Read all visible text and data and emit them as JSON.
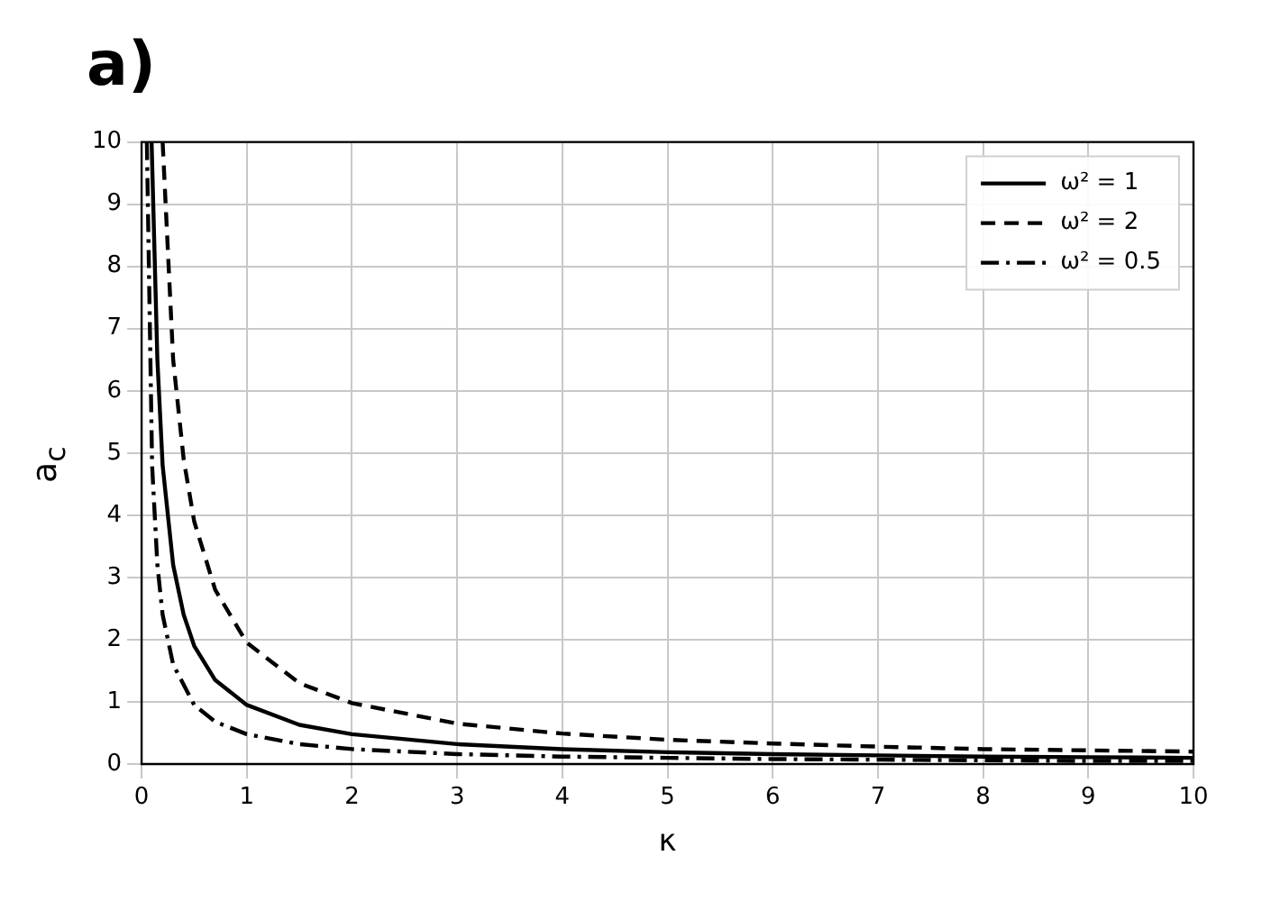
{
  "chart_data": {
    "type": "line",
    "title": "a)",
    "xlabel": "κ",
    "ylabel": "a$_{c}$",
    "xlim": [
      0,
      10
    ],
    "ylim": [
      0,
      10
    ],
    "xticks": [
      0,
      1,
      2,
      3,
      4,
      5,
      6,
      7,
      8,
      9,
      10
    ],
    "yticks": [
      0,
      1,
      2,
      3,
      4,
      5,
      6,
      7,
      8,
      9,
      10
    ],
    "grid": true,
    "legend": "top right",
    "marker": "none",
    "series": [
      {
        "name": "ω² = 1",
        "color": "#000000",
        "line_style": "solid",
        "x": [
          0.095,
          0.15,
          0.2,
          0.3,
          0.4,
          0.5,
          0.7,
          1,
          1.5,
          2,
          3,
          4,
          5,
          6,
          7,
          8,
          9,
          10
        ],
        "values": [
          10,
          6.5,
          4.8,
          3.2,
          2.4,
          1.9,
          1.35,
          0.95,
          0.63,
          0.48,
          0.32,
          0.24,
          0.19,
          0.16,
          0.14,
          0.12,
          0.11,
          0.1
        ]
      },
      {
        "name": "ω² = 2",
        "color": "#000000",
        "line_style": "dashed",
        "x": [
          0.2,
          0.3,
          0.4,
          0.5,
          0.7,
          1,
          1.5,
          2,
          3,
          4,
          5,
          6,
          7,
          8,
          9,
          10
        ],
        "values": [
          10,
          6.5,
          4.9,
          3.9,
          2.8,
          1.95,
          1.3,
          0.98,
          0.65,
          0.49,
          0.39,
          0.33,
          0.28,
          0.24,
          0.22,
          0.2
        ]
      },
      {
        "name": "ω² = 0.5",
        "color": "#000000",
        "line_style": "dashdot",
        "x": [
          0.05,
          0.1,
          0.15,
          0.2,
          0.3,
          0.5,
          0.7,
          1,
          1.5,
          2,
          3,
          4,
          5,
          6,
          7,
          8,
          9,
          10
        ],
        "values": [
          10,
          4.8,
          3.2,
          2.4,
          1.6,
          0.95,
          0.68,
          0.48,
          0.32,
          0.24,
          0.16,
          0.12,
          0.1,
          0.08,
          0.07,
          0.06,
          0.05,
          0.05
        ]
      }
    ]
  }
}
